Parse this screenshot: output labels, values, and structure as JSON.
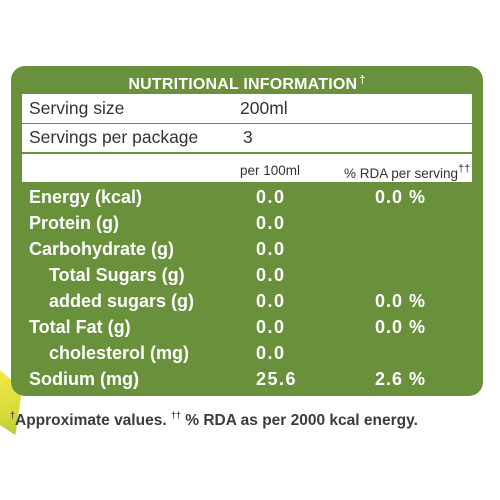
{
  "label": {
    "title": "NUTRITIONAL INFORMATION",
    "title_mark": "†",
    "serving_size_label": "Serving size",
    "serving_size_value": "200ml",
    "servings_label": "Servings per package",
    "servings_value": "3",
    "col_per100": "per 100ml",
    "col_rda": "% RDA per serving",
    "col_rda_mark": "††",
    "rows": [
      {
        "name": "Energy (kcal)",
        "per100": "0.0",
        "rda": "0.0 %"
      },
      {
        "name": "Protein (g)",
        "per100": "0.0",
        "rda": ""
      },
      {
        "name": "Carbohydrate (g)",
        "per100": "0.0",
        "rda": ""
      },
      {
        "name": "Total Sugars (g)",
        "per100": "0.0",
        "rda": ""
      },
      {
        "name": "added sugars (g)",
        "per100": "0.0",
        "rda": "0.0 %"
      },
      {
        "name": "Total Fat (g)",
        "per100": "0.0",
        "rda": "0.0 %"
      },
      {
        "name": "cholesterol (mg)",
        "per100": "0.0",
        "rda": ""
      },
      {
        "name": "Sodium (mg)",
        "per100": "25.6",
        "rda": "2.6 %"
      }
    ],
    "footnote_mark1": "†",
    "footnote_part1": "Approximate values.",
    "footnote_mark2": "††",
    "footnote_part2": "% RDA as per 2000 kcal energy."
  },
  "colors": {
    "panel_green": "#69903a",
    "text_dark": "#333333"
  }
}
